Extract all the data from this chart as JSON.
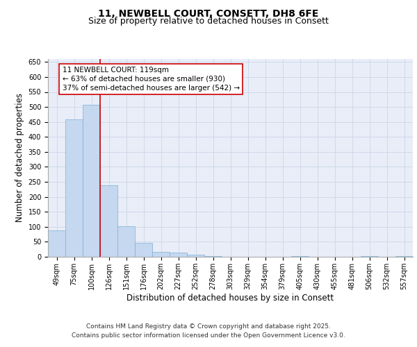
{
  "title_line1": "11, NEWBELL COURT, CONSETT, DH8 6FE",
  "title_line2": "Size of property relative to detached houses in Consett",
  "xlabel": "Distribution of detached houses by size in Consett",
  "ylabel": "Number of detached properties",
  "categories": [
    "49sqm",
    "75sqm",
    "100sqm",
    "126sqm",
    "151sqm",
    "176sqm",
    "202sqm",
    "227sqm",
    "252sqm",
    "278sqm",
    "303sqm",
    "329sqm",
    "354sqm",
    "379sqm",
    "405sqm",
    "430sqm",
    "455sqm",
    "481sqm",
    "506sqm",
    "532sqm",
    "557sqm"
  ],
  "values": [
    88,
    458,
    507,
    238,
    103,
    47,
    17,
    13,
    8,
    2,
    0,
    0,
    0,
    0,
    3,
    0,
    0,
    0,
    2,
    0,
    2
  ],
  "bar_color": "#c5d8f0",
  "bar_edge_color": "#7bafd4",
  "grid_color": "#d0d8e8",
  "background_color": "#e8edf8",
  "vline_x_index": 2.5,
  "vline_color": "#cc0000",
  "annotation_text": "11 NEWBELL COURT: 119sqm\n← 63% of detached houses are smaller (930)\n37% of semi-detached houses are larger (542) →",
  "annotation_box_color": "#ffffff",
  "annotation_box_edge_color": "#cc0000",
  "ylim": [
    0,
    660
  ],
  "yticks": [
    0,
    50,
    100,
    150,
    200,
    250,
    300,
    350,
    400,
    450,
    500,
    550,
    600,
    650
  ],
  "footer_line1": "Contains HM Land Registry data © Crown copyright and database right 2025.",
  "footer_line2": "Contains public sector information licensed under the Open Government Licence v3.0.",
  "title_fontsize": 10,
  "subtitle_fontsize": 9,
  "tick_fontsize": 7,
  "label_fontsize": 8.5,
  "annotation_fontsize": 7.5,
  "footer_fontsize": 6.5
}
